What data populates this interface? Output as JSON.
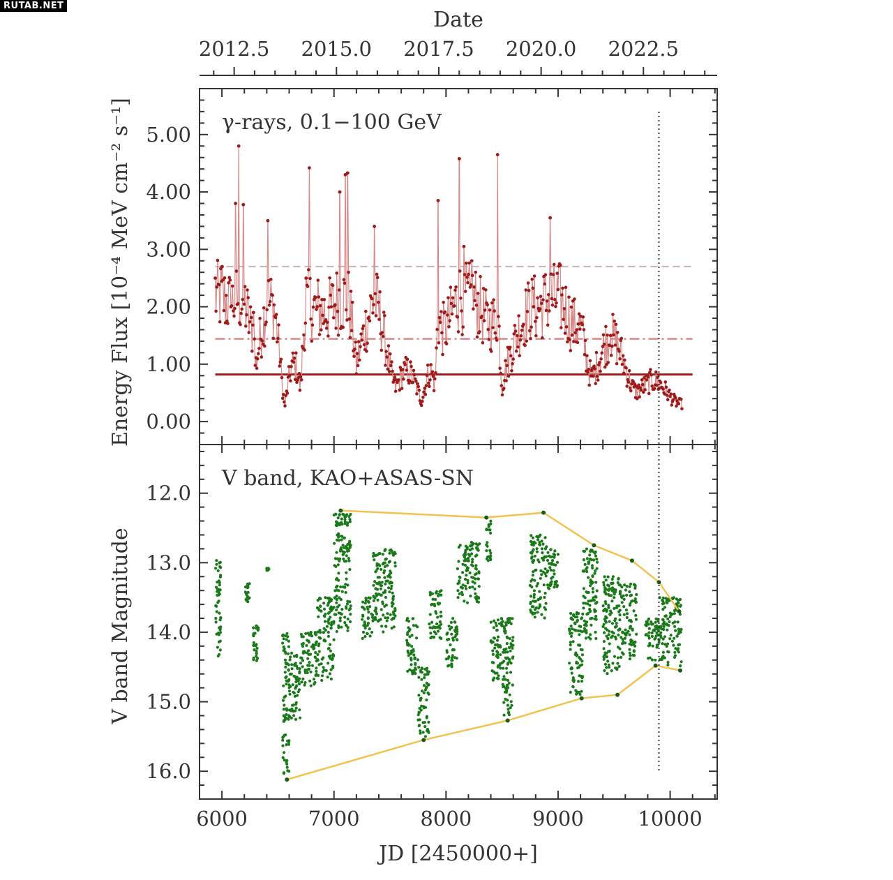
{
  "watermark": "RUTAB.NET",
  "chart_data": {
    "type": "scatter",
    "top_axis": {
      "label": "Date",
      "tick_labels": [
        "2012.5",
        "2015.0",
        "2017.5",
        "2020.0",
        "2022.5"
      ],
      "tick_values": [
        2012.5,
        2015.0,
        2017.5,
        2020.0,
        2022.5
      ]
    },
    "x_axis": {
      "label": "JD [2450000+]",
      "ticks": [
        6000,
        7000,
        8000,
        9000,
        10000
      ],
      "range": [
        5800,
        10420
      ]
    },
    "panels": [
      {
        "id": "gamma",
        "annotation": "γ-rays, 0.1−100 GeV",
        "ylabel": "Energy Flux [10⁻⁴ MeV cm⁻² s⁻¹]",
        "yticks": [
          "0.00",
          "1.00",
          "2.00",
          "3.00",
          "4.00",
          "5.00"
        ],
        "ylim": [
          -0.4,
          5.8
        ],
        "series_color": "#9e1b1b",
        "reference_lines": [
          {
            "style": "solid",
            "value": 0.82,
            "color": "#9e1b1b"
          },
          {
            "style": "dashdot",
            "value": 1.44,
            "color": "#d87a7a"
          },
          {
            "style": "dashed",
            "value": 2.7,
            "color": "#c8b8b8"
          }
        ],
        "peaks": [
          {
            "x": 5940,
            "y": 2.5
          },
          {
            "x": 6000,
            "y": 2.7
          },
          {
            "x": 6080,
            "y": 2.0
          },
          {
            "x": 6120,
            "y": 3.8
          },
          {
            "x": 6150,
            "y": 4.8
          },
          {
            "x": 6190,
            "y": 3.78
          },
          {
            "x": 6280,
            "y": 1.9
          },
          {
            "x": 6410,
            "y": 3.5
          },
          {
            "x": 6450,
            "y": 2.2
          },
          {
            "x": 6750,
            "y": 2.5
          },
          {
            "x": 6780,
            "y": 4.42
          },
          {
            "x": 6850,
            "y": 2.0
          },
          {
            "x": 7050,
            "y": 4.0
          },
          {
            "x": 7100,
            "y": 4.3
          },
          {
            "x": 7120,
            "y": 4.33
          },
          {
            "x": 7360,
            "y": 3.4
          },
          {
            "x": 7930,
            "y": 3.85
          },
          {
            "x": 8120,
            "y": 4.58
          },
          {
            "x": 8160,
            "y": 3.05
          },
          {
            "x": 8230,
            "y": 2.8
          },
          {
            "x": 8460,
            "y": 4.65
          },
          {
            "x": 8780,
            "y": 2.0
          },
          {
            "x": 8930,
            "y": 3.55
          },
          {
            "x": 9000,
            "y": 2.3
          },
          {
            "x": 9180,
            "y": 1.7
          },
          {
            "x": 9470,
            "y": 1.5
          }
        ],
        "troughs": [
          {
            "x": 6300,
            "y": 0.45
          },
          {
            "x": 6560,
            "y": 0.05
          },
          {
            "x": 6700,
            "y": 0.2
          },
          {
            "x": 7200,
            "y": 0.8
          },
          {
            "x": 7550,
            "y": 0.55
          },
          {
            "x": 7780,
            "y": 0.3
          },
          {
            "x": 7900,
            "y": 0.25
          },
          {
            "x": 8500,
            "y": 0.3
          },
          {
            "x": 9300,
            "y": 0.7
          },
          {
            "x": 9700,
            "y": 0.5
          },
          {
            "x": 10090,
            "y": 0.3
          }
        ]
      },
      {
        "id": "vband",
        "annotation": "V band, KAO+ASAS-SN",
        "ylabel": "V band Magnitude",
        "yticks": [
          "12.0",
          "13.0",
          "14.0",
          "15.0",
          "16.0"
        ],
        "ylim": [
          11.3,
          16.4
        ],
        "inverted": true,
        "series_color": "#1a7a1a",
        "envelope_color": "#f2c14e",
        "upper_envelope": [
          {
            "x": 7060,
            "y": 12.25
          },
          {
            "x": 8360,
            "y": 12.35
          },
          {
            "x": 8870,
            "y": 12.28
          },
          {
            "x": 9320,
            "y": 12.75
          },
          {
            "x": 9660,
            "y": 12.97
          },
          {
            "x": 9900,
            "y": 13.28
          },
          {
            "x": 10080,
            "y": 13.7
          }
        ],
        "lower_envelope": [
          {
            "x": 6580,
            "y": 16.12
          },
          {
            "x": 7800,
            "y": 15.55
          },
          {
            "x": 8550,
            "y": 15.27
          },
          {
            "x": 9210,
            "y": 14.95
          },
          {
            "x": 9530,
            "y": 14.9
          },
          {
            "x": 9870,
            "y": 14.48
          },
          {
            "x": 10090,
            "y": 14.55
          }
        ],
        "clusters": [
          {
            "x": [
              5940,
              5990
            ],
            "y": [
              12.95,
              14.4
            ]
          },
          {
            "x": [
              6210,
              6250
            ],
            "y": [
              13.3,
              13.6
            ]
          },
          {
            "x": [
              6280,
              6330
            ],
            "y": [
              13.9,
              14.45
            ]
          },
          {
            "x": [
              6400,
              6420
            ],
            "y": [
              13.08,
              13.12
            ]
          },
          {
            "x": [
              6540,
              6600
            ],
            "y": [
              14.0,
              16.1
            ]
          },
          {
            "x": [
              6600,
              6700
            ],
            "y": [
              14.3,
              15.3
            ]
          },
          {
            "x": [
              6700,
              6850
            ],
            "y": [
              14.0,
              14.8
            ]
          },
          {
            "x": [
              6850,
              7000
            ],
            "y": [
              13.5,
              14.7
            ]
          },
          {
            "x": [
              7000,
              7150
            ],
            "y": [
              12.3,
              14.0
            ]
          },
          {
            "x": [
              7250,
              7350
            ],
            "y": [
              13.5,
              14.1
            ]
          },
          {
            "x": [
              7350,
              7550
            ],
            "y": [
              12.8,
              14.0
            ]
          },
          {
            "x": [
              7650,
              7750
            ],
            "y": [
              13.8,
              14.6
            ]
          },
          {
            "x": [
              7750,
              7850
            ],
            "y": [
              14.5,
              15.5
            ]
          },
          {
            "x": [
              7850,
              7960
            ],
            "y": [
              13.4,
              14.1
            ]
          },
          {
            "x": [
              8000,
              8100
            ],
            "y": [
              13.8,
              14.5
            ]
          },
          {
            "x": [
              8100,
              8300
            ],
            "y": [
              12.7,
              13.6
            ]
          },
          {
            "x": [
              8360,
              8400
            ],
            "y": [
              12.4,
              13.0
            ]
          },
          {
            "x": [
              8400,
              8500
            ],
            "y": [
              13.8,
              14.7
            ]
          },
          {
            "x": [
              8500,
              8600
            ],
            "y": [
              13.8,
              15.2
            ]
          },
          {
            "x": [
              8750,
              8900
            ],
            "y": [
              12.6,
              13.8
            ]
          },
          {
            "x": [
              8900,
              9000
            ],
            "y": [
              12.8,
              13.4
            ]
          },
          {
            "x": [
              9100,
              9220
            ],
            "y": [
              13.7,
              14.9
            ]
          },
          {
            "x": [
              9220,
              9350
            ],
            "y": [
              12.8,
              14.1
            ]
          },
          {
            "x": [
              9400,
              9550
            ],
            "y": [
              13.2,
              14.6
            ]
          },
          {
            "x": [
              9550,
              9700
            ],
            "y": [
              13.3,
              14.4
            ]
          },
          {
            "x": [
              9780,
              9900
            ],
            "y": [
              13.8,
              14.4
            ]
          },
          {
            "x": [
              9900,
              10100
            ],
            "y": [
              13.5,
              14.5
            ]
          }
        ]
      }
    ],
    "vertical_marker": {
      "x": 9900,
      "style": "dotted"
    }
  }
}
